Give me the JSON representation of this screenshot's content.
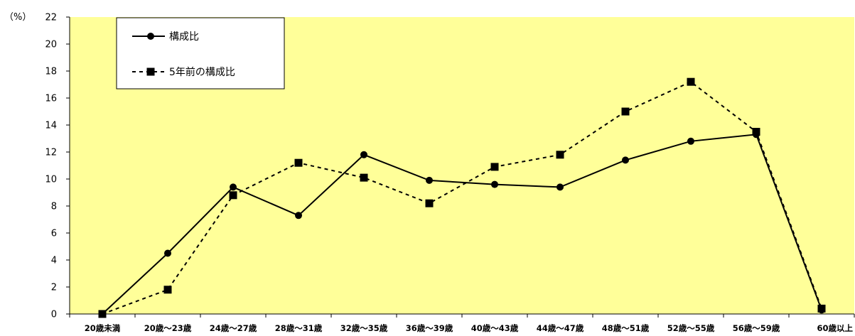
{
  "chart_data": {
    "type": "line",
    "title": "",
    "xlabel": "",
    "ylabel": "（%）",
    "ylim": [
      0,
      22
    ],
    "yticks": [
      0,
      2,
      4,
      6,
      8,
      10,
      12,
      14,
      16,
      18,
      20,
      22
    ],
    "grid": false,
    "legend_position": "top-left",
    "plot_background": "#FFFF99",
    "categories": [
      "20歳未満",
      "20歳～23歳",
      "24歳～27歳",
      "28歳～31歳",
      "32歳～35歳",
      "36歳～39歳",
      "40歳～43歳",
      "44歳～47歳",
      "48歳～51歳",
      "52歳～55歳",
      "56歳～59歳",
      "60歳以上"
    ],
    "series": [
      {
        "name": "構成比",
        "line_style": "solid",
        "marker": "circle",
        "color": "#000000",
        "values": [
          0.0,
          4.5,
          9.4,
          7.3,
          11.8,
          9.9,
          9.6,
          9.4,
          11.4,
          12.8,
          13.3,
          0.3
        ]
      },
      {
        "name": "5年前の構成比",
        "line_style": "dashed",
        "marker": "square",
        "color": "#000000",
        "values": [
          0.0,
          1.8,
          8.8,
          11.2,
          10.1,
          8.2,
          10.9,
          11.8,
          15.0,
          17.2,
          13.5,
          0.4
        ]
      }
    ]
  }
}
